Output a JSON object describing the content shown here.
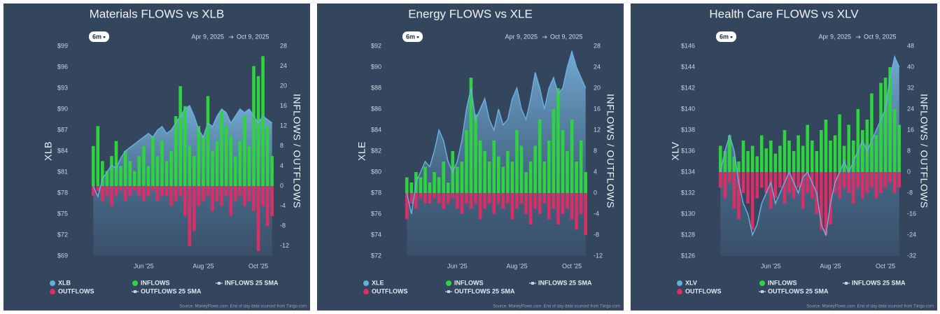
{
  "chart_data": [
    {
      "type": "flows",
      "title": "Materials FLOWS vs XLB",
      "range_button": "6m",
      "start_date": "Apr 9, 2025",
      "end_date": "Oct 9, 2025",
      "y_label": "XLB",
      "y2_label": "INFLOWS / OUTFLOWS",
      "source": "Source: MoneyFlows.com. End of day data sourced from Tiingo.com",
      "grid": false,
      "ylim": [
        69,
        99
      ],
      "yticks": [
        {
          "value": 69,
          "label": "$69"
        },
        {
          "value": 72,
          "label": "$72"
        },
        {
          "value": 75,
          "label": "$75"
        },
        {
          "value": 78,
          "label": "$78"
        },
        {
          "value": 81,
          "label": "$81"
        },
        {
          "value": 84,
          "label": "$84"
        },
        {
          "value": 87,
          "label": "$87"
        },
        {
          "value": 90,
          "label": "$90"
        },
        {
          "value": 93,
          "label": "$93"
        },
        {
          "value": 96,
          "label": "$96"
        },
        {
          "value": 99,
          "label": "$99"
        }
      ],
      "y2lim": [
        -14,
        28
      ],
      "y2ticks": [
        -12,
        -8,
        -4,
        0,
        4,
        8,
        12,
        16,
        20,
        24,
        28
      ],
      "xticks": [
        {
          "value": 11,
          "label": "Jun '25"
        },
        {
          "value": 24,
          "label": "Aug '25"
        },
        {
          "value": 36,
          "label": "Oct '25"
        }
      ],
      "series": [
        {
          "name": "XLB",
          "color": "#6aaee0",
          "kind": "area",
          "marker": "circle",
          "values": [
            79,
            77.5,
            80,
            81,
            82,
            81.5,
            83,
            84,
            84.5,
            85,
            85.5,
            86,
            86.5,
            86,
            87,
            87.5,
            86.5,
            87,
            88,
            89,
            90,
            90.5,
            89,
            87,
            86,
            88,
            87.5,
            89,
            90,
            89.5,
            88,
            89,
            90,
            89.5,
            90,
            89,
            88,
            89,
            88.5,
            88
          ]
        },
        {
          "name": "OUTFLOWS",
          "color": "#d92e66",
          "kind": "bar",
          "axis": "y2",
          "marker": "circle",
          "values": [
            -2,
            -1,
            -3,
            -2,
            -4,
            -2,
            -1,
            -3,
            -2,
            -1,
            -2,
            -3,
            -2,
            -1,
            -3,
            -2,
            -2,
            -4,
            -3,
            -2,
            -6,
            -12,
            -9,
            -4,
            -3,
            -2,
            -5,
            -3,
            -4,
            -2,
            -6,
            -3,
            -2,
            -4,
            -3,
            -5,
            -13,
            -4,
            -8,
            -6
          ]
        },
        {
          "name": "INFLOWS",
          "color": "#2fd23f",
          "kind": "bar",
          "axis": "y2",
          "marker": "circle",
          "values": [
            8,
            12,
            5,
            3,
            6,
            9,
            4,
            7,
            5,
            3,
            6,
            8,
            4,
            10,
            6,
            9,
            5,
            7,
            14,
            20,
            16,
            8,
            6,
            12,
            10,
            18,
            7,
            9,
            15,
            12,
            10,
            6,
            9,
            14,
            8,
            24,
            22,
            26,
            12,
            6
          ]
        },
        {
          "name": "OUTFLOWS 25 SMA",
          "color": "#c9d2dd",
          "marker": "line"
        },
        {
          "name": "INFLOWS 25 SMA",
          "color": "#c9d2dd",
          "marker": "line"
        }
      ]
    },
    {
      "type": "flows",
      "title": "Energy FLOWS vs XLE",
      "range_button": "6m",
      "start_date": "Apr 9, 2025",
      "end_date": "Oct 9, 2025",
      "y_label": "XLE",
      "y2_label": "INFLOWS / OUTFLOWS",
      "source": "Source: MoneyFlows.com. End of day data sourced from Tiingo.com",
      "grid": false,
      "ylim": [
        72,
        92
      ],
      "yticks": [
        {
          "value": 72,
          "label": "$72"
        },
        {
          "value": 74,
          "label": "$74"
        },
        {
          "value": 76,
          "label": "$76"
        },
        {
          "value": 78,
          "label": "$78"
        },
        {
          "value": 80,
          "label": "$80"
        },
        {
          "value": 82,
          "label": "$82"
        },
        {
          "value": 84,
          "label": "$84"
        },
        {
          "value": 86,
          "label": "$86"
        },
        {
          "value": 88,
          "label": "$88"
        },
        {
          "value": 90,
          "label": "$90"
        },
        {
          "value": 92,
          "label": "$92"
        }
      ],
      "y2lim": [
        -12,
        28
      ],
      "y2ticks": [
        -12,
        -8,
        -4,
        0,
        4,
        8,
        12,
        16,
        20,
        24,
        28
      ],
      "xticks": [
        {
          "value": 11,
          "label": "Jun '25"
        },
        {
          "value": 24,
          "label": "Aug '25"
        },
        {
          "value": 36,
          "label": "Oct '25"
        }
      ],
      "series": [
        {
          "name": "XLE",
          "color": "#6aaee0",
          "kind": "area",
          "marker": "circle",
          "values": [
            78,
            76,
            79,
            80,
            81,
            80.5,
            82,
            84,
            83,
            81,
            80,
            81,
            83,
            86,
            88,
            85,
            86,
            87,
            85,
            84,
            86,
            84.5,
            85,
            87,
            88,
            86,
            85,
            87,
            89.5,
            88,
            86,
            88,
            89,
            87.5,
            88,
            90,
            91.5,
            90,
            89,
            88
          ]
        },
        {
          "name": "OUTFLOWS",
          "color": "#d92e66",
          "kind": "bar",
          "axis": "y2",
          "marker": "circle",
          "values": [
            -5,
            -2,
            -3,
            -1,
            -2,
            -2,
            -1,
            -2,
            -3,
            -2,
            -1,
            -3,
            -4,
            -2,
            -3,
            -2,
            -5,
            -3,
            -2,
            -4,
            -2,
            -3,
            -2,
            -5,
            -3,
            -2,
            -4,
            -6,
            -3,
            -4,
            -2,
            -5,
            -3,
            -6,
            -4,
            -3,
            -5,
            -7,
            -4,
            -8
          ]
        },
        {
          "name": "INFLOWS",
          "color": "#2fd23f",
          "kind": "bar",
          "axis": "y2",
          "marker": "circle",
          "values": [
            3,
            2,
            4,
            3,
            5,
            2,
            4,
            3,
            6,
            2,
            8,
            5,
            6,
            12,
            22,
            15,
            10,
            8,
            6,
            10,
            7,
            5,
            8,
            6,
            12,
            9,
            4,
            6,
            9,
            14,
            6,
            10,
            16,
            20,
            12,
            8,
            14,
            6,
            10,
            4
          ]
        },
        {
          "name": "OUTFLOWS 25 SMA",
          "color": "#c9d2dd",
          "marker": "line"
        },
        {
          "name": "INFLOWS 25 SMA",
          "color": "#c9d2dd",
          "marker": "line"
        }
      ]
    },
    {
      "type": "flows",
      "title": "Health Care FLOWS vs XLV",
      "range_button": "6m",
      "start_date": "Apr 9, 2025",
      "end_date": "Oct 9, 2025",
      "y_label": "XLV",
      "y2_label": "INFLOWS / OUTFLOWS",
      "source": "Source: MoneyFlows.com. End of day data sourced from Tiingo.com",
      "grid": false,
      "ylim": [
        126,
        146
      ],
      "yticks": [
        {
          "value": 126,
          "label": "$126"
        },
        {
          "value": 128,
          "label": "$128"
        },
        {
          "value": 130,
          "label": "$130"
        },
        {
          "value": 132,
          "label": "$132"
        },
        {
          "value": 134,
          "label": "$134"
        },
        {
          "value": 136,
          "label": "$136"
        },
        {
          "value": 138,
          "label": "$138"
        },
        {
          "value": 140,
          "label": "$140"
        },
        {
          "value": 142,
          "label": "$142"
        },
        {
          "value": 144,
          "label": "$144"
        },
        {
          "value": 146,
          "label": "$146"
        }
      ],
      "y2lim": [
        -32,
        48
      ],
      "y2ticks": [
        -32,
        -24,
        -16,
        -8,
        0,
        8,
        16,
        24,
        32,
        40,
        48
      ],
      "xticks": [
        {
          "value": 11,
          "label": "Jun '25"
        },
        {
          "value": 24,
          "label": "Aug '25"
        },
        {
          "value": 36,
          "label": "Oct '25"
        }
      ],
      "series": [
        {
          "name": "XLV",
          "color": "#6aaee0",
          "kind": "area",
          "marker": "circle",
          "values": [
            134,
            136,
            137.5,
            136,
            133,
            131,
            130,
            128,
            129,
            131,
            132,
            133,
            131,
            132,
            133,
            134,
            133,
            132,
            133.5,
            134,
            133,
            132,
            129,
            128,
            131,
            133,
            134,
            135,
            134,
            135,
            136,
            137,
            136,
            137,
            138,
            139,
            140,
            143,
            145,
            144
          ]
        },
        {
          "name": "OUTFLOWS",
          "color": "#d92e66",
          "kind": "bar",
          "axis": "y2",
          "marker": "circle",
          "values": [
            -6,
            -10,
            -4,
            -14,
            -18,
            -8,
            -12,
            -22,
            -10,
            -6,
            -8,
            -14,
            -10,
            -6,
            -12,
            -8,
            -10,
            -6,
            -14,
            -8,
            -10,
            -16,
            -22,
            -24,
            -20,
            -8,
            -10,
            -6,
            -8,
            -12,
            -6,
            -10,
            -8,
            -6,
            -10,
            -8,
            -6,
            -4,
            -8,
            -6
          ]
        },
        {
          "name": "INFLOWS",
          "color": "#2fd23f",
          "kind": "bar",
          "axis": "y2",
          "marker": "circle",
          "values": [
            10,
            8,
            14,
            6,
            4,
            12,
            8,
            10,
            6,
            14,
            9,
            12,
            7,
            10,
            16,
            12,
            8,
            14,
            10,
            18,
            12,
            8,
            16,
            20,
            12,
            14,
            22,
            10,
            18,
            12,
            24,
            16,
            20,
            30,
            14,
            34,
            36,
            40,
            24,
            18
          ]
        },
        {
          "name": "OUTFLOWS 25 SMA",
          "color": "#c9d2dd",
          "marker": "line"
        },
        {
          "name": "INFLOWS 25 SMA",
          "color": "#c9d2dd",
          "marker": "line"
        }
      ]
    }
  ]
}
